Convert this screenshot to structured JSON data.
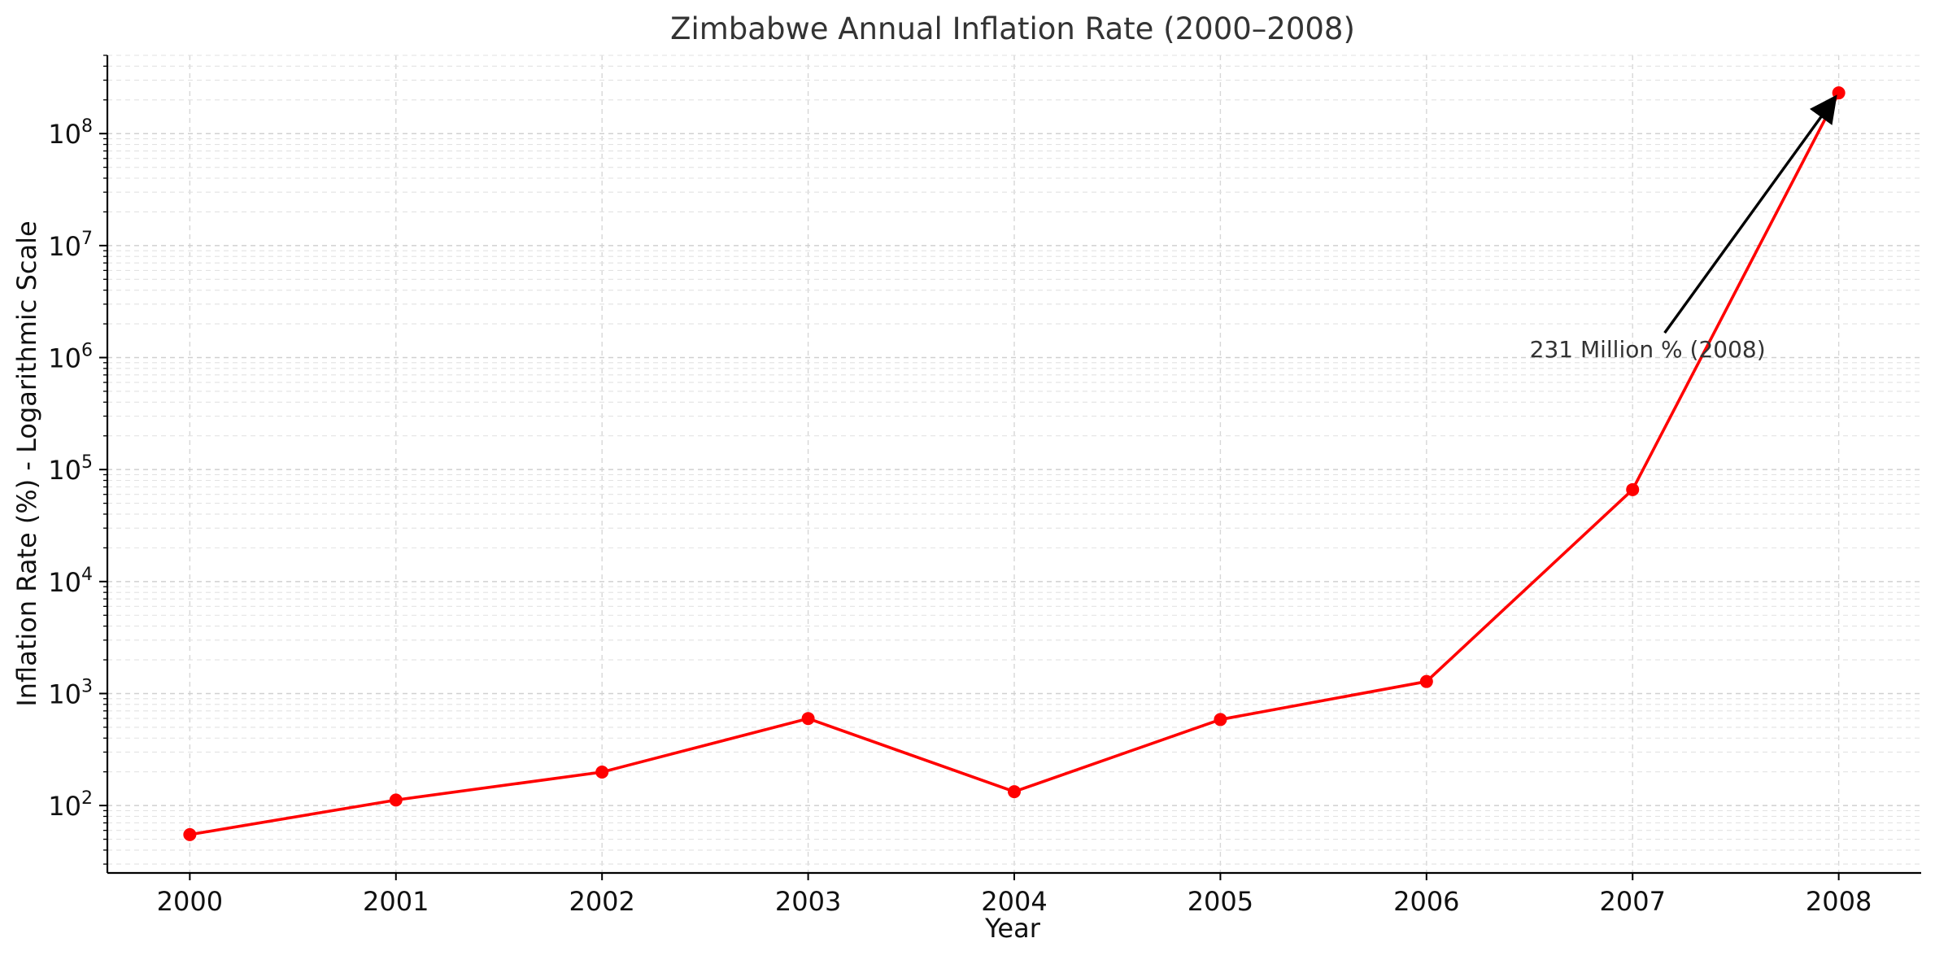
{
  "chart_data": {
    "type": "line",
    "title": "Zimbabwe Annual Inflation Rate (2000–2008)",
    "xlabel": "Year",
    "ylabel": "Inflation Rate (%) - Logarithmic Scale",
    "y_scale": "log",
    "ylim": [
      25,
      500000000
    ],
    "grid": true,
    "legend": "none",
    "x": [
      2000,
      2001,
      2002,
      2003,
      2004,
      2005,
      2006,
      2007,
      2008
    ],
    "series": [
      {
        "values": [
          55,
          112,
          199,
          598,
          133,
          586,
          1281,
          66212,
          231000000
        ],
        "color": "#ff0000"
      }
    ],
    "annotation": {
      "text": "231 Million % (2008)",
      "x": 2008,
      "y": 231000000
    },
    "x_ticks": [
      2000,
      2001,
      2002,
      2003,
      2004,
      2005,
      2006,
      2007,
      2008
    ],
    "y_ticks": [
      {
        "value": 100,
        "base": "10",
        "exp": "2"
      },
      {
        "value": 1000,
        "base": "10",
        "exp": "3"
      },
      {
        "value": 10000,
        "base": "10",
        "exp": "4"
      },
      {
        "value": 100000,
        "base": "10",
        "exp": "5"
      },
      {
        "value": 1000000,
        "base": "10",
        "exp": "6"
      },
      {
        "value": 10000000,
        "base": "10",
        "exp": "7"
      },
      {
        "value": 100000000,
        "base": "10",
        "exp": "8"
      }
    ]
  }
}
